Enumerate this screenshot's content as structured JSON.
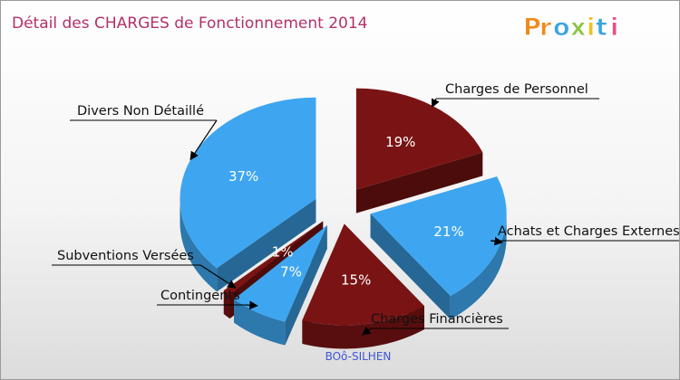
{
  "chart_data": {
    "type": "pie",
    "title": "Détail des CHARGES de Fonctionnement 2014",
    "subtitle": "BOô-SILHEN",
    "slices": [
      {
        "label": "Charges de Personnel",
        "value": 19,
        "pct_label": "19%",
        "color": "#7a1414"
      },
      {
        "label": "Achats et Charges Externes",
        "value": 21,
        "pct_label": "21%",
        "color": "#3ea6f0"
      },
      {
        "label": "Charges Financières",
        "value": 15,
        "pct_label": "15%",
        "color": "#7a1414"
      },
      {
        "label": "Contingents",
        "value": 7,
        "pct_label": "7%",
        "color": "#3ea6f0"
      },
      {
        "label": "Subventions Versées",
        "value": 1,
        "pct_label": "1%",
        "color": "#7a1414"
      },
      {
        "label": "Divers Non Détaillé",
        "value": 37,
        "pct_label": "37%",
        "color": "#3ea6f0"
      }
    ]
  },
  "logo": {
    "letters": [
      {
        "char": "P",
        "color": "#f08a1c"
      },
      {
        "char": "r",
        "color": "#f08a1c"
      },
      {
        "char": "o",
        "color": "#3aa6dc"
      },
      {
        "char": "x",
        "color": "#8cc63f"
      },
      {
        "char": "i",
        "color": "#f0c020"
      },
      {
        "char": "t",
        "color": "#3aa6dc"
      },
      {
        "char": "i",
        "color": "#e8508a"
      }
    ]
  }
}
